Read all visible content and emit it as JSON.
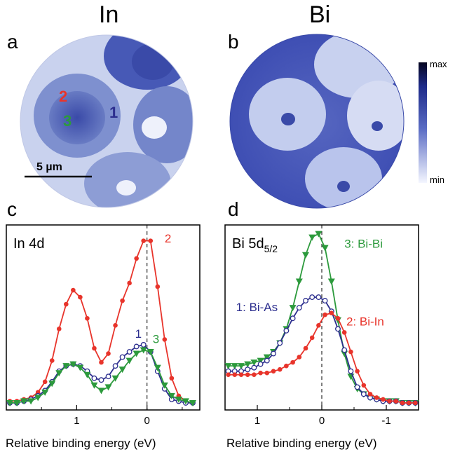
{
  "figure": {
    "col_a_title": "In",
    "col_b_title": "Bi",
    "panels": {
      "a": "a",
      "b": "b",
      "c": "c",
      "d": "d"
    },
    "colorbar": {
      "max_label": "max",
      "min_label": "min"
    },
    "map_a": {
      "labels": {
        "r1": "1",
        "r2": "2",
        "r3": "3"
      },
      "scalebar": "5 µm"
    }
  },
  "chart_data": [
    {
      "type": "line",
      "panel": "c",
      "title": "In 4d",
      "xlabel": "Relative binding energy (eV)",
      "ylabel": "",
      "xlim": [
        2.0,
        -0.75
      ],
      "ylim": [
        0,
        1.05
      ],
      "x_reversed": true,
      "xticks": [
        1,
        0
      ],
      "reference_line_x": 0,
      "series": [
        {
          "name": "2",
          "color": "#e8342b",
          "marker": "filled-circle",
          "x": [
            1.95,
            1.85,
            1.75,
            1.65,
            1.55,
            1.45,
            1.35,
            1.25,
            1.15,
            1.05,
            0.95,
            0.85,
            0.75,
            0.65,
            0.55,
            0.45,
            0.35,
            0.25,
            0.15,
            0.05,
            -0.05,
            -0.15,
            -0.25,
            -0.35,
            -0.45,
            -0.55,
            -0.65
          ],
          "y": [
            0.05,
            0.05,
            0.06,
            0.07,
            0.1,
            0.16,
            0.28,
            0.46,
            0.6,
            0.68,
            0.64,
            0.52,
            0.35,
            0.27,
            0.32,
            0.48,
            0.62,
            0.72,
            0.86,
            0.96,
            0.96,
            0.7,
            0.4,
            0.18,
            0.08,
            0.05,
            0.04
          ]
        },
        {
          "name": "1",
          "color": "#2c2e8e",
          "marker": "open-circle",
          "x": [
            1.95,
            1.85,
            1.75,
            1.65,
            1.55,
            1.45,
            1.35,
            1.25,
            1.15,
            1.05,
            0.95,
            0.85,
            0.75,
            0.65,
            0.55,
            0.45,
            0.35,
            0.25,
            0.15,
            0.05,
            -0.05,
            -0.15,
            -0.25,
            -0.35,
            -0.45,
            -0.55,
            -0.65
          ],
          "y": [
            0.04,
            0.04,
            0.05,
            0.06,
            0.08,
            0.11,
            0.16,
            0.22,
            0.25,
            0.26,
            0.25,
            0.22,
            0.18,
            0.17,
            0.19,
            0.25,
            0.3,
            0.33,
            0.36,
            0.37,
            0.33,
            0.22,
            0.12,
            0.06,
            0.05,
            0.04,
            0.04
          ]
        },
        {
          "name": "3",
          "color": "#2c9a3c",
          "marker": "filled-triangle-down",
          "x": [
            1.95,
            1.85,
            1.75,
            1.65,
            1.55,
            1.45,
            1.35,
            1.25,
            1.15,
            1.05,
            0.95,
            0.85,
            0.75,
            0.65,
            0.55,
            0.45,
            0.35,
            0.25,
            0.15,
            0.05,
            -0.05,
            -0.15,
            -0.25,
            -0.35,
            -0.45,
            -0.55,
            -0.65
          ],
          "y": [
            0.04,
            0.04,
            0.05,
            0.05,
            0.07,
            0.1,
            0.15,
            0.21,
            0.25,
            0.26,
            0.24,
            0.2,
            0.14,
            0.11,
            0.13,
            0.18,
            0.23,
            0.28,
            0.32,
            0.34,
            0.33,
            0.24,
            0.14,
            0.08,
            0.06,
            0.05,
            0.04
          ]
        }
      ],
      "annotations": [
        {
          "text": "2",
          "color": "#e8342b",
          "x": -0.25,
          "y": 0.95
        },
        {
          "text": "1",
          "color": "#2c2e8e",
          "x": 0.17,
          "y": 0.41
        },
        {
          "text": "3",
          "color": "#2c9a3c",
          "x": -0.08,
          "y": 0.38
        }
      ]
    },
    {
      "type": "line",
      "panel": "d",
      "title": "Bi 5d",
      "title_subscript": "5/2",
      "xlabel": "Relative binding energy (eV)",
      "ylabel": "",
      "xlim": [
        1.5,
        -1.5
      ],
      "ylim": [
        0,
        1.05
      ],
      "x_reversed": true,
      "xticks": [
        1,
        0,
        -1
      ],
      "xtick_labels": [
        "1",
        "0",
        "-1"
      ],
      "reference_line_x": 0,
      "series": [
        {
          "name": "3: Bi-Bi",
          "color": "#2c9a3c",
          "marker": "filled-triangle-down",
          "x": [
            1.45,
            1.35,
            1.25,
            1.15,
            1.05,
            0.95,
            0.85,
            0.75,
            0.65,
            0.55,
            0.45,
            0.35,
            0.25,
            0.15,
            0.05,
            -0.05,
            -0.15,
            -0.25,
            -0.35,
            -0.45,
            -0.55,
            -0.65,
            -0.75,
            -0.85,
            -0.95,
            -1.05,
            -1.15,
            -1.25,
            -1.35,
            -1.45
          ],
          "y": [
            0.25,
            0.25,
            0.25,
            0.26,
            0.27,
            0.28,
            0.3,
            0.33,
            0.38,
            0.46,
            0.58,
            0.73,
            0.88,
            0.98,
            1.0,
            0.92,
            0.73,
            0.51,
            0.32,
            0.19,
            0.12,
            0.09,
            0.07,
            0.06,
            0.05,
            0.05,
            0.05,
            0.04,
            0.04,
            0.04
          ]
        },
        {
          "name": "1: Bi-As",
          "color": "#2c2e8e",
          "marker": "open-circle",
          "x": [
            1.45,
            1.35,
            1.25,
            1.15,
            1.05,
            0.95,
            0.85,
            0.75,
            0.65,
            0.55,
            0.45,
            0.35,
            0.25,
            0.15,
            0.05,
            -0.05,
            -0.15,
            -0.25,
            -0.35,
            -0.45,
            -0.55,
            -0.65,
            -0.75,
            -0.85,
            -0.95,
            -1.05,
            -1.15,
            -1.25,
            -1.35,
            -1.45
          ],
          "y": [
            0.22,
            0.22,
            0.22,
            0.23,
            0.24,
            0.26,
            0.28,
            0.32,
            0.38,
            0.45,
            0.52,
            0.58,
            0.62,
            0.64,
            0.64,
            0.62,
            0.56,
            0.46,
            0.34,
            0.22,
            0.13,
            0.09,
            0.07,
            0.06,
            0.05,
            0.05,
            0.05,
            0.04,
            0.04,
            0.04
          ]
        },
        {
          "name": "2: Bi-In",
          "color": "#e8342b",
          "marker": "filled-circle",
          "x": [
            1.45,
            1.35,
            1.25,
            1.15,
            1.05,
            0.95,
            0.85,
            0.75,
            0.65,
            0.55,
            0.45,
            0.35,
            0.25,
            0.15,
            0.05,
            -0.05,
            -0.15,
            -0.25,
            -0.35,
            -0.45,
            -0.55,
            -0.65,
            -0.75,
            -0.85,
            -0.95,
            -1.05,
            -1.15,
            -1.25,
            -1.35,
            -1.45
          ],
          "y": [
            0.2,
            0.2,
            0.2,
            0.2,
            0.2,
            0.21,
            0.21,
            0.22,
            0.23,
            0.25,
            0.27,
            0.3,
            0.35,
            0.41,
            0.48,
            0.54,
            0.55,
            0.52,
            0.44,
            0.33,
            0.22,
            0.14,
            0.09,
            0.07,
            0.06,
            0.05,
            0.05,
            0.04,
            0.04,
            0.04
          ]
        }
      ],
      "annotations": [
        {
          "text": "3: Bi-Bi",
          "color": "#2c9a3c",
          "x": -0.35,
          "y": 0.92
        },
        {
          "text": "1: Bi-As",
          "color": "#2c2e8e",
          "x": 1.33,
          "y": 0.56
        },
        {
          "text": "2: Bi-In",
          "color": "#e8342b",
          "x": -0.38,
          "y": 0.48
        }
      ]
    }
  ]
}
